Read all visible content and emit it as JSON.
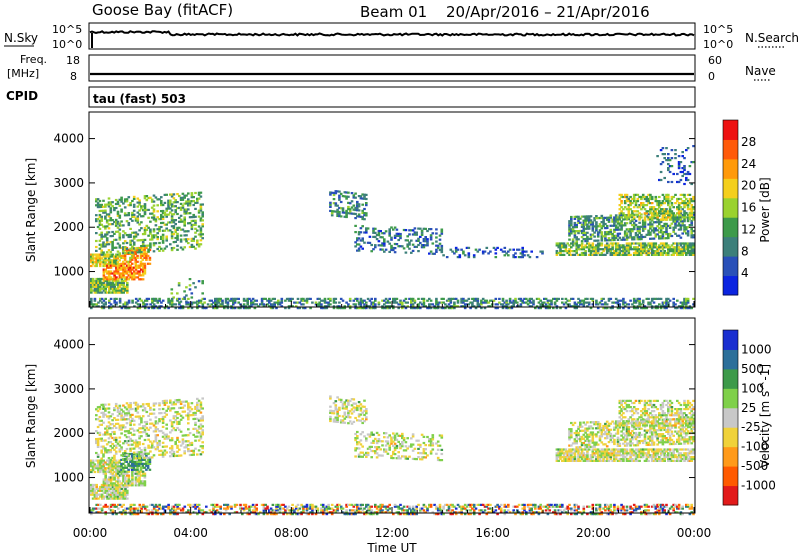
{
  "header": {
    "station": "Goose Bay (fitACF)",
    "beam": "Beam 01",
    "date_range": "20/Apr/2016 – 21/Apr/2016"
  },
  "panels": {
    "nsky": {
      "left_label": "N.Sky",
      "left_ticks": [
        "10^5",
        "10^0"
      ],
      "right_label": "N.Search",
      "right_ticks": [
        "10^5",
        "10^0"
      ]
    },
    "freq": {
      "left_label_1": "Freq.",
      "left_label_2": "[MHz]",
      "left_ticks": [
        "18",
        "8"
      ],
      "right_label": "Nave",
      "right_ticks": [
        "60",
        "0"
      ]
    },
    "cpid": {
      "label": "CPID",
      "value": "tau (fast) 503"
    }
  },
  "time_axis": {
    "ticks": [
      "00:00",
      "04:00",
      "08:00",
      "12:00",
      "16:00",
      "20:00",
      "00:00"
    ],
    "label": "Time UT"
  },
  "colors": {
    "power_scale": [
      "#0b24e0",
      "#2950b8",
      "#3c7f7a",
      "#3d9a4a",
      "#9ad22f",
      "#f4cf1c",
      "#ff9a0a",
      "#ff5a0a",
      "#ee1111"
    ],
    "velocity_scale": [
      "#e21a1a",
      "#ff5a00",
      "#ff9a1a",
      "#f0d23a",
      "#c8c8c8",
      "#7fd04a",
      "#3d9a4a",
      "#2c6f9a",
      "#1a2fd0"
    ]
  },
  "chart_data": [
    {
      "type": "heatmap",
      "name": "power",
      "ylabel": "Slant Range [km]",
      "xlim_hours": [
        0,
        24
      ],
      "ylim_km": [
        200,
        4600
      ],
      "yticks": [
        1000,
        2000,
        3000,
        4000
      ],
      "colorbar_label": "Power [dB]",
      "colorbar_ticks": [
        4,
        8,
        12,
        16,
        20,
        24,
        28
      ],
      "colorbar_range": [
        0,
        30
      ],
      "regions": [
        {
          "t0": 0.0,
          "t1": 1.5,
          "r0": 550,
          "r1": 900,
          "level": 0.45,
          "density": 0.85
        },
        {
          "t0": 0.0,
          "t1": 1.2,
          "r0": 1150,
          "r1": 1450,
          "level": 0.55,
          "density": 0.8
        },
        {
          "t0": 0.5,
          "t1": 2.2,
          "r0": 850,
          "r1": 1200,
          "level": 0.75,
          "density": 0.7
        },
        {
          "t0": 1.2,
          "t1": 2.4,
          "r0": 1200,
          "r1": 1600,
          "level": 0.7,
          "density": 0.65
        },
        {
          "t0": 0.2,
          "t1": 4.5,
          "r0": 1400,
          "r1": 2700,
          "level": 0.4,
          "density": 0.35,
          "slope": 0.18
        },
        {
          "t0": 3.2,
          "t1": 4.5,
          "r0": 300,
          "r1": 900,
          "level": 0.35,
          "density": 0.1
        },
        {
          "t0": 9.5,
          "t1": 11.0,
          "r0": 2300,
          "r1": 2900,
          "level": 0.3,
          "density": 0.35,
          "slope": -0.35
        },
        {
          "t0": 10.5,
          "t1": 14.0,
          "r0": 1500,
          "r1": 2100,
          "level": 0.25,
          "density": 0.3,
          "slope": -0.12
        },
        {
          "t0": 14.0,
          "t1": 18.0,
          "r0": 1350,
          "r1": 1600,
          "level": 0.2,
          "density": 0.2
        },
        {
          "t0": 18.5,
          "t1": 24.0,
          "r0": 1400,
          "r1": 1700,
          "level": 0.45,
          "density": 0.75
        },
        {
          "t0": 19.0,
          "t1": 24.0,
          "r0": 1700,
          "r1": 2300,
          "level": 0.35,
          "density": 0.55,
          "slope": 0.1
        },
        {
          "t0": 21.0,
          "t1": 24.0,
          "r0": 2200,
          "r1": 2800,
          "level": 0.5,
          "density": 0.5
        },
        {
          "t0": 22.5,
          "t1": 24.0,
          "r0": 3000,
          "r1": 3900,
          "level": 0.2,
          "density": 0.15
        },
        {
          "t0": 0.0,
          "t1": 24.0,
          "r0": 200,
          "r1": 450,
          "level": 0.3,
          "density": 0.45
        }
      ]
    },
    {
      "type": "heatmap",
      "name": "velocity",
      "ylabel": "Slant Range [km]",
      "xlim_hours": [
        0,
        24
      ],
      "ylim_km": [
        200,
        4600
      ],
      "yticks": [
        1000,
        2000,
        3000,
        4000
      ],
      "colorbar_label": "Velocity [m s^-1]",
      "colorbar_ticks": [
        -1000,
        -500,
        -100,
        -25,
        25,
        100,
        500,
        1000
      ],
      "regions": [
        {
          "t0": 0.0,
          "t1": 1.5,
          "r0": 550,
          "r1": 900,
          "level": 0.5,
          "density": 0.85
        },
        {
          "t0": 0.0,
          "t1": 1.2,
          "r0": 1150,
          "r1": 1450,
          "level": 0.5,
          "density": 0.8
        },
        {
          "t0": 0.5,
          "t1": 2.2,
          "r0": 850,
          "r1": 1200,
          "level": 0.5,
          "density": 0.7
        },
        {
          "t0": 1.2,
          "t1": 2.4,
          "r0": 1200,
          "r1": 1600,
          "level": 0.72,
          "density": 0.65
        },
        {
          "t0": 0.2,
          "t1": 4.5,
          "r0": 1400,
          "r1": 2700,
          "level": 0.5,
          "density": 0.35,
          "slope": 0.18
        },
        {
          "t0": 9.5,
          "t1": 11.0,
          "r0": 2300,
          "r1": 2900,
          "level": 0.5,
          "density": 0.35,
          "slope": -0.35
        },
        {
          "t0": 10.5,
          "t1": 14.0,
          "r0": 1500,
          "r1": 2100,
          "level": 0.5,
          "density": 0.3,
          "slope": -0.12
        },
        {
          "t0": 18.5,
          "t1": 24.0,
          "r0": 1400,
          "r1": 1700,
          "level": 0.5,
          "density": 0.75
        },
        {
          "t0": 19.0,
          "t1": 24.0,
          "r0": 1700,
          "r1": 2300,
          "level": 0.5,
          "density": 0.55,
          "slope": 0.1
        },
        {
          "t0": 21.0,
          "t1": 24.0,
          "r0": 2200,
          "r1": 2800,
          "level": 0.5,
          "density": 0.5
        },
        {
          "t0": 0.0,
          "t1": 24.0,
          "r0": 200,
          "r1": 450,
          "level": 0.5,
          "density": 0.45,
          "noisy": true
        }
      ]
    }
  ]
}
